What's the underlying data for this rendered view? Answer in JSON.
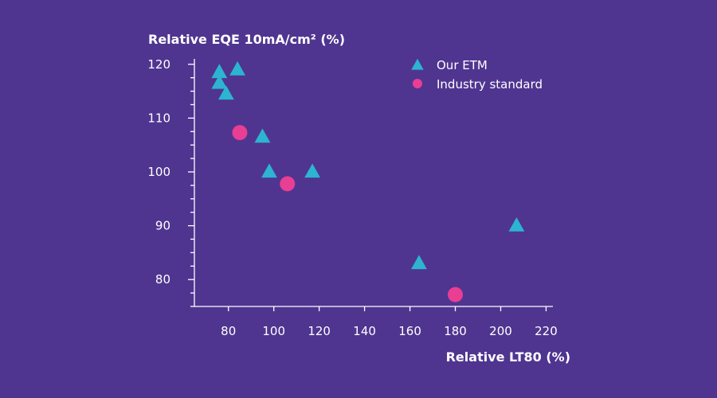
{
  "chart_data": {
    "type": "scatter",
    "title": "",
    "ylabel": "Relative EQE 10mA/cm² (%)",
    "xlabel": "Relative LT80 (%)",
    "xlim": [
      65,
      223
    ],
    "ylim": [
      75,
      121
    ],
    "x_ticks": [
      80,
      100,
      120,
      140,
      160,
      180,
      200,
      220
    ],
    "y_ticks": [
      80,
      90,
      100,
      110,
      120
    ],
    "y_minor_step": 2.5,
    "legend_position": "top-right",
    "series": [
      {
        "name": "Our ETM",
        "marker": "triangle",
        "color": "#2cb4d1",
        "points": [
          {
            "x": 76,
            "y": 118.5
          },
          {
            "x": 84,
            "y": 119
          },
          {
            "x": 76,
            "y": 116.5
          },
          {
            "x": 79,
            "y": 114.5
          },
          {
            "x": 95,
            "y": 106.5
          },
          {
            "x": 98,
            "y": 100
          },
          {
            "x": 117,
            "y": 100
          },
          {
            "x": 164,
            "y": 83
          },
          {
            "x": 207,
            "y": 90
          }
        ]
      },
      {
        "name": "Industry standard",
        "marker": "circle",
        "color": "#e83e94",
        "points": [
          {
            "x": 85,
            "y": 107.3
          },
          {
            "x": 106,
            "y": 97.8
          },
          {
            "x": 180,
            "y": 77.2
          }
        ]
      }
    ]
  }
}
